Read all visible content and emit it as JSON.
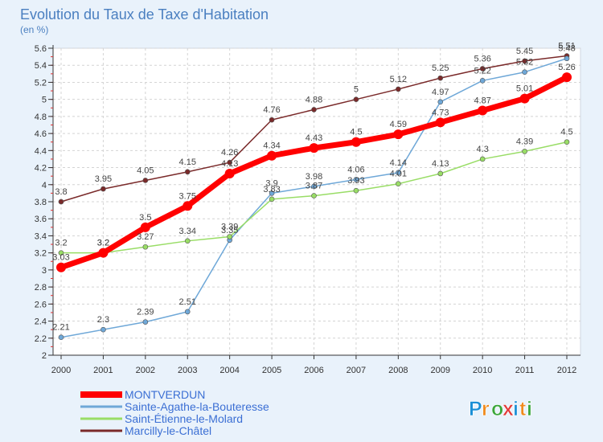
{
  "header": {
    "title": "Evolution du Taux de Taxe d'Habitation",
    "subtitle": "(en %)"
  },
  "brand": {
    "letters": [
      "P",
      "r",
      "o",
      "x",
      "i",
      "t",
      "i"
    ],
    "letter_colors": [
      "#1a8fd6",
      "#f08a1c",
      "#3aa63a",
      "#e23a3a",
      "#1a8fd6",
      "#f08a1c",
      "#3aa63a"
    ]
  },
  "chart_data": {
    "type": "line",
    "title": "Evolution du Taux de Taxe d'Habitation",
    "ylabel": "(en %)",
    "xlabel": "",
    "x": [
      "2000",
      "2001",
      "2002",
      "2003",
      "2004",
      "2005",
      "2006",
      "2007",
      "2008",
      "2009",
      "2010",
      "2011",
      "2012"
    ],
    "ylim": [
      2,
      5.6
    ],
    "yticks": [
      "2",
      "2.2",
      "2.4",
      "2.6",
      "2.8",
      "3",
      "3.2",
      "3.4",
      "3.6",
      "3.8",
      "4",
      "4.2",
      "4.4",
      "4.6",
      "4.8",
      "5",
      "5.2",
      "5.4",
      "5.6"
    ],
    "grid": true,
    "legend_position": "bottom-left",
    "series": [
      {
        "name": "MONTVERDUN",
        "color": "#ff0000",
        "values": [
          3.03,
          3.2,
          3.5,
          3.75,
          4.13,
          4.34,
          4.43,
          4.5,
          4.59,
          4.73,
          4.87,
          5.01,
          5.26
        ],
        "labels": [
          "3.03",
          "3.2",
          "3.5",
          "3.75",
          "4.13",
          "4.34",
          "4.43",
          "4.5",
          "4.59",
          "4.73",
          "4.87",
          "5.01",
          "5.26"
        ]
      },
      {
        "name": "Sainte-Agathe-la-Bouteresse",
        "color": "#6fa8d8",
        "values": [
          2.21,
          2.3,
          2.39,
          2.51,
          3.35,
          3.9,
          3.98,
          4.06,
          4.14,
          4.97,
          5.22,
          5.32,
          5.48
        ],
        "labels": [
          "2.21",
          "2.3",
          "2.39",
          "2.51",
          "3.35",
          "3.9",
          "3.98",
          "4.06",
          "4.14",
          "4.97",
          "5.22",
          "5.32",
          "5.48"
        ]
      },
      {
        "name": "Saint-Étienne-le-Molard",
        "color": "#99dd66",
        "values": [
          3.2,
          3.2,
          3.27,
          3.34,
          3.39,
          3.83,
          3.87,
          3.93,
          4.01,
          4.13,
          4.3,
          4.39,
          4.5
        ],
        "labels": [
          "3.2",
          "3.2",
          "3.27",
          "3.34",
          "3.39",
          "3.83",
          "3.87",
          "3.93",
          "4.01",
          "4.13",
          "4.3",
          "4.39",
          "4.5"
        ]
      },
      {
        "name": "Marcilly-le-Châtel",
        "color": "#7a2a2a",
        "values": [
          3.8,
          3.95,
          4.05,
          4.15,
          4.26,
          4.76,
          4.88,
          5.0,
          5.12,
          5.25,
          5.36,
          5.45,
          5.51
        ],
        "labels": [
          "3.8",
          "3.95",
          "4.05",
          "4.15",
          "4.26",
          "4.76",
          "4.88",
          "5",
          "5.12",
          "5.25",
          "5.36",
          "5.45",
          "5.51"
        ]
      }
    ]
  }
}
